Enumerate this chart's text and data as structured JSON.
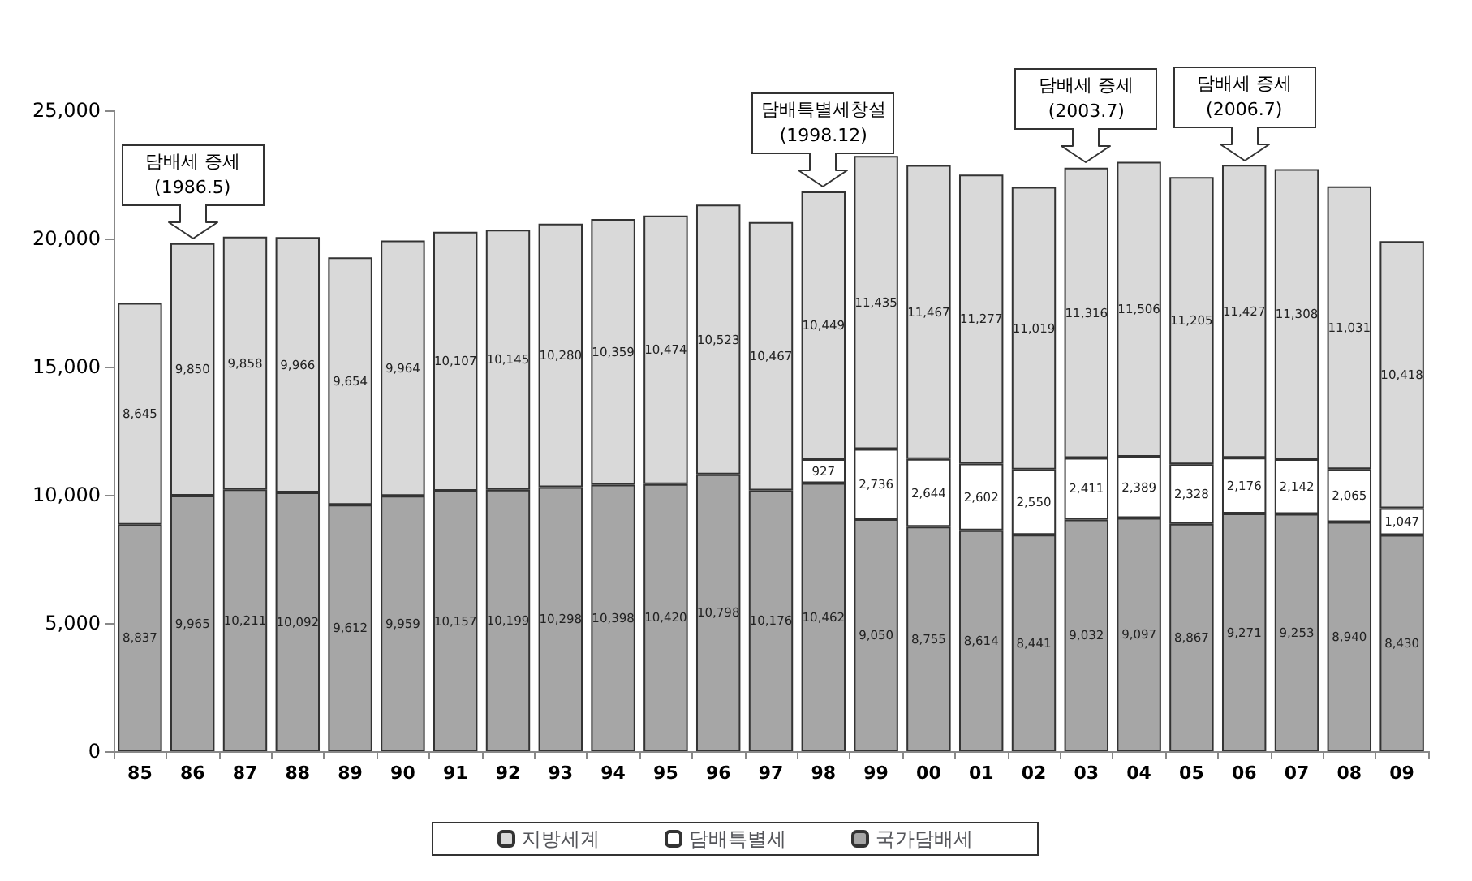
{
  "chart_data": {
    "type": "bar",
    "stacked": true,
    "legend": "bottom",
    "grid": false,
    "categories": [
      "85",
      "86",
      "87",
      "88",
      "89",
      "90",
      "91",
      "92",
      "93",
      "94",
      "95",
      "96",
      "97",
      "98",
      "99",
      "00",
      "01",
      "02",
      "03",
      "04",
      "05",
      "06",
      "07",
      "08",
      "09"
    ],
    "ylim": [
      0,
      25000
    ],
    "yticks": [
      0,
      {
        "value": 5000,
        "label": "5,000"
      },
      {
        "value": 10000,
        "label": "10,000"
      },
      {
        "value": 15000,
        "label": "15,000"
      },
      {
        "value": 20000,
        "label": "20,000"
      },
      {
        "value": 25000,
        "label": "25,000"
      }
    ],
    "series": [
      {
        "name": "국가담배세",
        "color": "#a6a6a6",
        "values": [
          8837,
          9965,
          10211,
          10092,
          9612,
          9959,
          10157,
          10199,
          10298,
          10398,
          10420,
          10798,
          10176,
          10462,
          9050,
          8755,
          8614,
          8441,
          9032,
          9097,
          8867,
          9271,
          9253,
          8940,
          8430
        ],
        "value_labels": [
          "8,837",
          "9,965",
          "10,211",
          "10,092",
          "9,612",
          "9,959",
          "10,157",
          "10,199",
          "10,298",
          "10,398",
          "10,420",
          "10,798",
          "10,176",
          "10,462",
          "9,050",
          "8,755",
          "8,614",
          "8,441",
          "9,032",
          "9,097",
          "8,867",
          "9,271",
          "9,253",
          "8,940",
          "8,430"
        ]
      },
      {
        "name": "담배특별세",
        "color": "#ffffff",
        "values": [
          null,
          null,
          null,
          null,
          null,
          null,
          null,
          null,
          null,
          null,
          null,
          null,
          null,
          927,
          2736,
          2644,
          2602,
          2550,
          2411,
          2389,
          2328,
          2176,
          2142,
          2065,
          1047
        ],
        "value_labels": [
          null,
          null,
          null,
          null,
          null,
          null,
          null,
          null,
          null,
          null,
          null,
          null,
          null,
          "927",
          "2,736",
          "2,644",
          "2,602",
          "2,550",
          "2,411",
          "2,389",
          "2,328",
          "2,176",
          "2,142",
          "2,065",
          "1,047"
        ]
      },
      {
        "name": "지방세계",
        "color": "#d9d9d9",
        "values": [
          8645,
          9850,
          9858,
          9966,
          9654,
          9964,
          10107,
          10145,
          10280,
          10359,
          10474,
          10523,
          10467,
          10449,
          11435,
          11467,
          11277,
          11019,
          11316,
          11506,
          11205,
          11427,
          11308,
          11031,
          10418
        ],
        "value_labels": [
          "8,645",
          "9,850",
          "9,858",
          "9,966",
          "9,654",
          "9,964",
          "10,107",
          "10,145",
          "10,280",
          "10,359",
          "10,474",
          "10,523",
          "10,467",
          "10,449",
          "11,435",
          "11,467",
          "11,277",
          "11,019",
          "11,316",
          "11,506",
          "11,205",
          "11,427",
          "11,308",
          "11,031",
          "10,418"
        ]
      }
    ],
    "annotations": [
      {
        "text": "담배세 증세\n(1986.5)",
        "x": "86",
        "y": 19815
      },
      {
        "text": "담배특별세창설\n(1998.12)",
        "x": "98",
        "y": 21838
      },
      {
        "text": "담배세 증세\n(2003.7)",
        "x": "03",
        "y": 22759
      },
      {
        "text": "담배세 증세\n(2006.7)",
        "x": "06",
        "y": 22874
      }
    ]
  }
}
